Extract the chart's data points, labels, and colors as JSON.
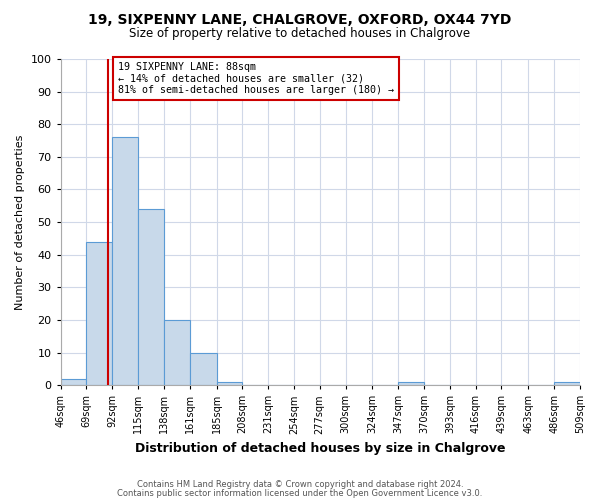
{
  "title1": "19, SIXPENNY LANE, CHALGROVE, OXFORD, OX44 7YD",
  "title2": "Size of property relative to detached houses in Chalgrove",
  "xlabel": "Distribution of detached houses by size in Chalgrove",
  "ylabel": "Number of detached properties",
  "footnote1": "Contains HM Land Registry data © Crown copyright and database right 2024.",
  "footnote2": "Contains public sector information licensed under the Open Government Licence v3.0.",
  "bin_edges": [
    46,
    69,
    92,
    115,
    138,
    161,
    185,
    208,
    231,
    254,
    277,
    300,
    324,
    347,
    370,
    393,
    416,
    439,
    463,
    486,
    509
  ],
  "bar_heights": [
    2,
    44,
    76,
    54,
    20,
    10,
    1,
    0,
    0,
    0,
    0,
    0,
    0,
    1,
    0,
    0,
    0,
    0,
    0,
    1
  ],
  "bar_color": "#c8d9ea",
  "bar_edge_color": "#5b9bd5",
  "red_line_x": 88,
  "red_line_color": "#cc0000",
  "annotation_title": "19 SIXPENNY LANE: 88sqm",
  "annotation_line1": "← 14% of detached houses are smaller (32)",
  "annotation_line2": "81% of semi-detached houses are larger (180) →",
  "annotation_box_color": "#ffffff",
  "annotation_box_edge_color": "#cc0000",
  "ylim": [
    0,
    100
  ],
  "yticks": [
    0,
    10,
    20,
    30,
    40,
    50,
    60,
    70,
    80,
    90,
    100
  ],
  "background_color": "#ffffff",
  "grid_color": "#d0d8e8"
}
